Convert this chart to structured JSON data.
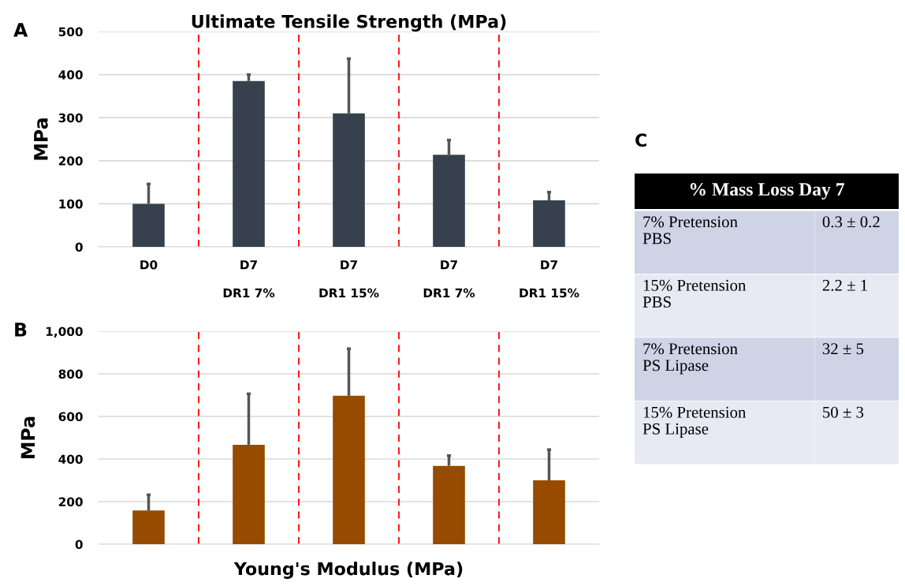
{
  "chart_data": [
    {
      "type": "bar",
      "title": "Ultimate Tensile Strength (MPa)",
      "ylabel": "MPa",
      "annotations": [
        "A"
      ],
      "categories": [
        "D0",
        "D7\nDR1 7%",
        "D7\nDR1 15%",
        "D7\nDR1 7%",
        "D7\nDR1 15%"
      ],
      "series": [
        {
          "color": "#36414d",
          "values": [
            100,
            385,
            310,
            214,
            108
          ],
          "errors": [
            [
              100,
              146
            ],
            [
              385,
              400
            ],
            [
              310,
              437
            ],
            [
              214,
              248
            ],
            [
              108,
              127
            ]
          ]
        }
      ],
      "ylim": [
        0,
        500
      ],
      "yticks": [
        0,
        100,
        200,
        300,
        400,
        500
      ],
      "grid": "y"
    },
    {
      "type": "bar",
      "xlabel": "Young's Modulus (MPa)",
      "ylabel": "MPa",
      "annotations": [
        "B"
      ],
      "categories": [
        null,
        null,
        null,
        null,
        null
      ],
      "series": [
        {
          "color": "#964b00",
          "values": [
            158,
            467,
            697,
            368,
            300
          ],
          "errors": [
            [
              158,
              232
            ],
            [
              467,
              706
            ],
            [
              697,
              918
            ],
            [
              368,
              416
            ],
            [
              300,
              444
            ]
          ]
        }
      ],
      "ylim": [
        0,
        1000
      ],
      "yticks": [
        0,
        200,
        400,
        600,
        800,
        {
          "value": 1000,
          "label": "1,000"
        }
      ],
      "grid": "y"
    },
    {
      "type": "other",
      "title": "% Mass Loss Day 7",
      "annotations": [
        "C"
      ],
      "categories": [
        "7% Pretension\nPBS",
        "15% Pretension\nPBS",
        "7% Pretension\nPS Lipase",
        "15% Pretension\nPS Lipase"
      ],
      "cell_labels": [
        [
          "0.3 ± 0.2"
        ],
        [
          "2.2 ± 1"
        ],
        [
          "32 ± 5"
        ],
        [
          "50 ± 3"
        ]
      ]
    }
  ]
}
